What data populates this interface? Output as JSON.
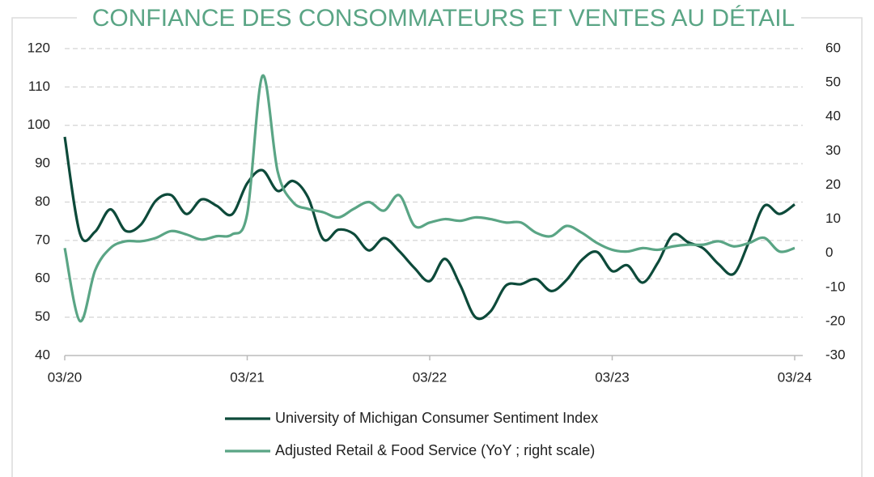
{
  "chart_data": {
    "type": "line",
    "title": "CONFIANCE DES CONSOMMATEURS ET VENTES AU DÉTAIL",
    "categories": [
      "03/20",
      null,
      null,
      null,
      null,
      null,
      null,
      null,
      null,
      null,
      null,
      null,
      "03/21",
      null,
      null,
      null,
      null,
      null,
      null,
      null,
      null,
      null,
      null,
      null,
      "03/22",
      null,
      null,
      null,
      null,
      null,
      null,
      null,
      null,
      null,
      null,
      null,
      "03/23",
      null,
      null,
      null,
      null,
      null,
      null,
      null,
      null,
      null,
      null,
      null,
      "03/24"
    ],
    "series": [
      {
        "name": "University of Michigan Consumer Sentiment Index",
        "color": "#0d4a3a",
        "axis": "y",
        "values": [
          97,
          71.8,
          72.3,
          78.1,
          72.5,
          74.1,
          80.4,
          81.8,
          76.9,
          80.7,
          79,
          76.8,
          84.9,
          88.3,
          82.9,
          85.5,
          81.2,
          70.3,
          72.8,
          71.7,
          67.4,
          70.6,
          67.2,
          62.8,
          59.4,
          65.2,
          58.4,
          50,
          51.5,
          58.2,
          58.6,
          59.9,
          56.8,
          59.7,
          64.9,
          67,
          62,
          63.5,
          59,
          64.2,
          71.5,
          69.5,
          67.9,
          63.8,
          61.3,
          69.7,
          79,
          76.9,
          79.4
        ]
      },
      {
        "name": "Adjusted Retail & Food Service (YoY ; right scale)",
        "color": "#5aa585",
        "axis": "y2",
        "values": [
          1.5,
          -19.9,
          -5,
          1.5,
          3.5,
          3.5,
          4.5,
          6.5,
          5.5,
          4,
          5,
          5.5,
          11.6,
          52,
          24,
          15,
          13,
          12,
          10.5,
          13,
          15,
          12.5,
          17,
          8,
          9,
          10,
          9.5,
          10.5,
          10,
          9,
          9,
          6,
          5,
          8,
          6,
          3,
          1,
          0.5,
          1.5,
          1,
          2,
          2.5,
          2.5,
          3.5,
          2,
          3,
          4.5,
          0.5,
          1.5
        ]
      }
    ],
    "ylim": [
      40,
      120
    ],
    "yticks": [
      40,
      50,
      60,
      70,
      80,
      90,
      100,
      110,
      120
    ],
    "y2lim": [
      -30,
      60
    ],
    "y2ticks": [
      -30,
      -20,
      -10,
      0,
      10,
      20,
      30,
      40,
      50,
      60
    ],
    "grid": true,
    "legend": "bottom"
  }
}
